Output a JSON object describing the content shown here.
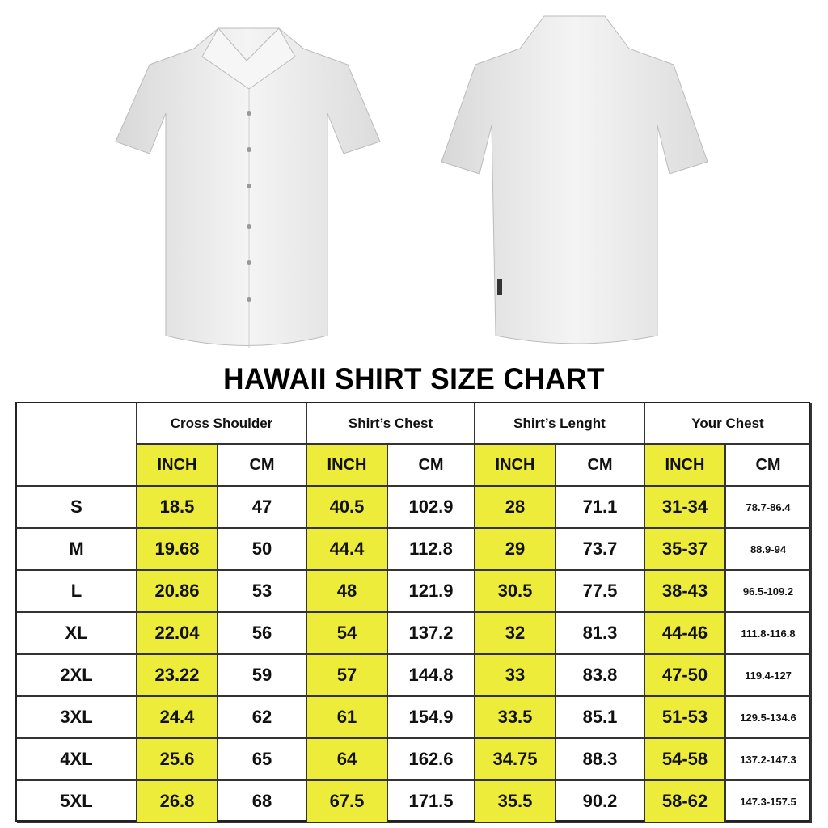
{
  "title": "HAWAII SHIRT SIZE CHART",
  "colors": {
    "highlight": "#eeec3a",
    "border": "#333333"
  },
  "images": {
    "front": "white-short-sleeve-shirt-front",
    "back": "white-short-sleeve-shirt-back"
  },
  "table": {
    "groups": [
      "Cross Shoulder",
      "Shirt’s Chest",
      "Shirt’s Lenght",
      "Your Chest"
    ],
    "units": [
      "INCH",
      "CM"
    ],
    "rows": [
      {
        "size": "S",
        "values": [
          "18.5",
          "47",
          "40.5",
          "102.9",
          "28",
          "71.1",
          "31-34",
          "78.7-86.4"
        ]
      },
      {
        "size": "M",
        "values": [
          "19.68",
          "50",
          "44.4",
          "112.8",
          "29",
          "73.7",
          "35-37",
          "88.9-94"
        ]
      },
      {
        "size": "L",
        "values": [
          "20.86",
          "53",
          "48",
          "121.9",
          "30.5",
          "77.5",
          "38-43",
          "96.5-109.2"
        ]
      },
      {
        "size": "XL",
        "values": [
          "22.04",
          "56",
          "54",
          "137.2",
          "32",
          "81.3",
          "44-46",
          "111.8-116.8"
        ]
      },
      {
        "size": "2XL",
        "values": [
          "23.22",
          "59",
          "57",
          "144.8",
          "33",
          "83.8",
          "47-50",
          "119.4-127"
        ]
      },
      {
        "size": "3XL",
        "values": [
          "24.4",
          "62",
          "61",
          "154.9",
          "33.5",
          "85.1",
          "51-53",
          "129.5-134.6"
        ]
      },
      {
        "size": "4XL",
        "values": [
          "25.6",
          "65",
          "64",
          "162.6",
          "34.75",
          "88.3",
          "54-58",
          "137.2-147.3"
        ]
      },
      {
        "size": "5XL",
        "values": [
          "26.8",
          "68",
          "67.5",
          "171.5",
          "35.5",
          "90.2",
          "58-62",
          "147.3-157.5"
        ]
      }
    ]
  }
}
